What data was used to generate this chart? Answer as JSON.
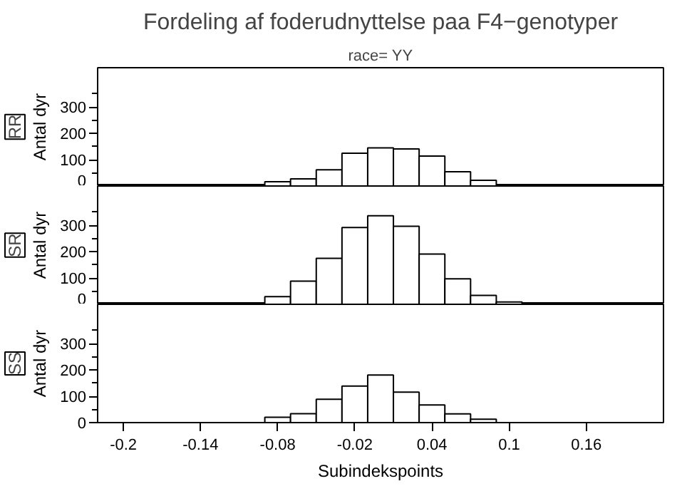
{
  "chart_data": [
    {
      "type": "histogram",
      "title": "Fordeling af foderudnyttelse paa F4−genotyper",
      "subtitle": "race= YY",
      "ylabel": "Antal dyr",
      "annotations": [
        "RR"
      ],
      "bins": [
        -0.09,
        -0.07,
        -0.05,
        -0.03,
        -0.01,
        0.01,
        0.03,
        0.05,
        0.07,
        0.09
      ],
      "values": [
        16,
        27,
        62,
        125,
        145,
        141,
        114,
        54,
        22
      ],
      "color": "#ffffff",
      "xlim": [
        -0.22,
        0.22
      ],
      "xticks": [
        -0.2,
        -0.14,
        -0.08,
        -0.02,
        0.04,
        0.1,
        0.16
      ],
      "ylim": [
        0,
        450
      ],
      "yticks": [
        0,
        100,
        200,
        300,
        {
          "value": 50,
          "label": null
        },
        {
          "value": 150,
          "label": null
        },
        {
          "value": 250,
          "label": null
        },
        {
          "value": 350,
          "label": null
        }
      ],
      "tick_labels": "y"
    },
    {
      "type": "histogram",
      "ylabel": "Antal dyr",
      "annotations": [
        "SR"
      ],
      "bins": [
        -0.11,
        -0.09,
        -0.07,
        -0.05,
        -0.03,
        -0.01,
        0.01,
        0.03,
        0.05,
        0.07,
        0.09,
        0.11
      ],
      "values": [
        5,
        29,
        88,
        175,
        292,
        337,
        297,
        191,
        97,
        34,
        9
      ],
      "color": "#ffffff",
      "xlim": [
        -0.22,
        0.22
      ],
      "xticks": [
        -0.2,
        -0.14,
        -0.08,
        -0.02,
        0.04,
        0.1,
        0.16
      ],
      "ylim": [
        0,
        450
      ],
      "yticks": [
        0,
        100,
        200,
        300,
        {
          "value": 50,
          "label": null
        },
        {
          "value": 150,
          "label": null
        },
        {
          "value": 250,
          "label": null
        },
        {
          "value": 350,
          "label": null
        }
      ],
      "tick_labels": "y"
    },
    {
      "type": "histogram",
      "ylabel": "Antal dyr",
      "xlabel": "Subindekspoints",
      "annotations": [
        "SS"
      ],
      "bins": [
        -0.11,
        -0.09,
        -0.07,
        -0.05,
        -0.03,
        -0.01,
        0.01,
        0.03,
        0.05,
        0.07,
        0.09,
        0.11
      ],
      "values": [
        null,
        20,
        34,
        89,
        139,
        181,
        116,
        67,
        33,
        13,
        null
      ],
      "color": "#ffffff",
      "xlim": [
        -0.22,
        0.22
      ],
      "xticks": [
        -0.2,
        -0.14,
        -0.08,
        -0.02,
        0.04,
        0.1,
        0.16
      ],
      "ylim": [
        0,
        450
      ],
      "yticks": [
        0,
        100,
        200,
        300,
        {
          "value": 50,
          "label": null
        },
        {
          "value": 150,
          "label": null
        },
        {
          "value": 250,
          "label": null
        },
        {
          "value": 350,
          "label": null
        }
      ]
    }
  ]
}
